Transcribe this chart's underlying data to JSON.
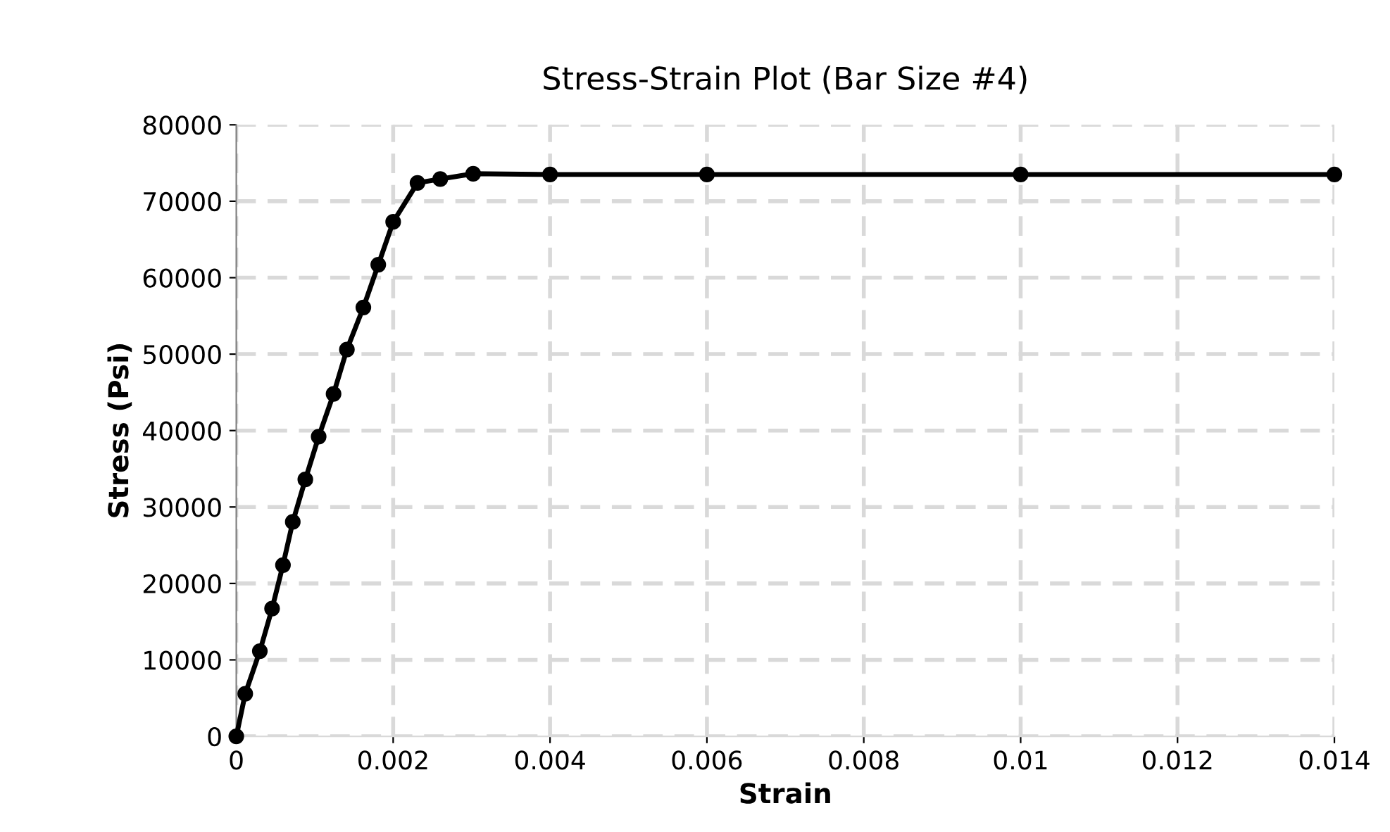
{
  "chart_data": {
    "type": "line",
    "title": "Stress-Strain Plot (Bar Size #4)",
    "xlabel": "Strain",
    "ylabel": "Stress (Psi)",
    "series": [
      {
        "color": "#000000",
        "x": [
          0,
          0.000114,
          0.0003,
          0.000456,
          0.000595,
          0.00072,
          0.00088,
          0.00105,
          0.00124,
          0.00141,
          0.00162,
          0.00181,
          0.002,
          0.00231,
          0.0026,
          0.00302,
          0.004,
          0.006,
          0.01,
          0.014
        ],
        "values": [
          0,
          5570,
          11140,
          16710,
          22400,
          28050,
          33600,
          39200,
          44800,
          50600,
          56100,
          61700,
          67300,
          72400,
          72900,
          73600,
          73500,
          73500,
          73500,
          73500
        ]
      }
    ],
    "xlim": [
      0,
      0.014
    ],
    "xticks": [
      0,
      0.002,
      0.004,
      0.006,
      0.008,
      0.01,
      0.012,
      0.014
    ],
    "ylim": [
      0,
      80000
    ],
    "yticks": [
      0,
      10000,
      20000,
      30000,
      40000,
      50000,
      60000,
      70000,
      80000
    ],
    "grid": true,
    "marker": "circle",
    "line_style": "solid",
    "legend": false
  }
}
